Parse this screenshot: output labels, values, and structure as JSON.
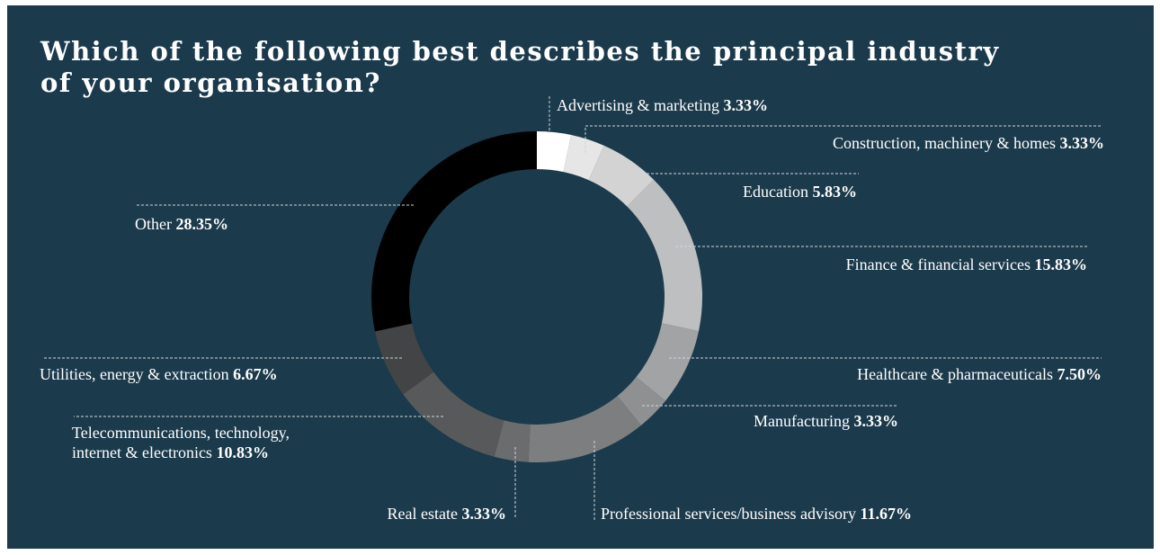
{
  "title": "Which of the following best describes the principal industry of your organisation?",
  "colors": {
    "background": "#1b3a4c",
    "text": "#ffffff",
    "leader": "#d0d6da"
  },
  "chart_data": {
    "type": "pie",
    "variant": "donut",
    "title": "Which of the following best describes the principal industry of your organisation?",
    "slices": [
      {
        "label": "Advertising & marketing",
        "value": 3.33,
        "display": "3.33%",
        "color": "#ffffff"
      },
      {
        "label": "Construction, machinery & homes",
        "value": 3.33,
        "display": "3.33%",
        "color": "#e6e6e6"
      },
      {
        "label": "Education",
        "value": 5.83,
        "display": "5.83%",
        "color": "#d3d3d4"
      },
      {
        "label": "Finance & financial services",
        "value": 15.83,
        "display": "15.83%",
        "color": "#bebfc1"
      },
      {
        "label": "Healthcare & pharmaceuticals",
        "value": 7.5,
        "display": "7.50%",
        "color": "#a2a3a5"
      },
      {
        "label": "Manufacturing",
        "value": 3.33,
        "display": "3.33%",
        "color": "#8f9092"
      },
      {
        "label": "Professional services/business advisory",
        "value": 11.67,
        "display": "11.67%",
        "color": "#7d7e80"
      },
      {
        "label": "Real estate",
        "value": 3.33,
        "display": "3.33%",
        "color": "#6b6c6e"
      },
      {
        "label": "Telecommunications, technology, internet & electronics",
        "lines": [
          "Telecommunications, technology,",
          "internet & electronics"
        ],
        "value": 10.83,
        "display": "10.83%",
        "color": "#58595b"
      },
      {
        "label": "Utilities, energy & extraction",
        "value": 6.67,
        "display": "6.67%",
        "color": "#434446"
      },
      {
        "label": "Other",
        "value": 28.35,
        "display": "28.35%",
        "color": "#000000"
      }
    ]
  }
}
